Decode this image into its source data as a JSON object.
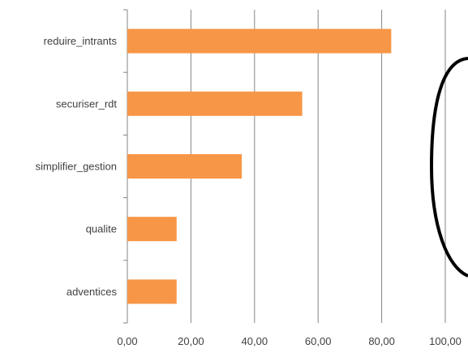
{
  "chart_data": {
    "type": "bar",
    "orientation": "horizontal",
    "categories": [
      "reduire_intrants",
      "securiser_rdt",
      "simplifier_gestion",
      "qualite",
      "adventices"
    ],
    "values": [
      83,
      55,
      36,
      15.5,
      15.5
    ],
    "title": "",
    "xlabel": "",
    "ylabel": "",
    "xlim": [
      0,
      100
    ],
    "xticks": [
      "0,00",
      "20,00",
      "40,00",
      "60,00",
      "80,00",
      "100,00"
    ],
    "grid": "vertical",
    "legend": "none",
    "bar_color": "#F79646",
    "grid_color": "#868686",
    "axis_color": "#868686"
  },
  "overlay": {
    "shape": "partial-ellipse",
    "stroke_color": "#000000"
  }
}
